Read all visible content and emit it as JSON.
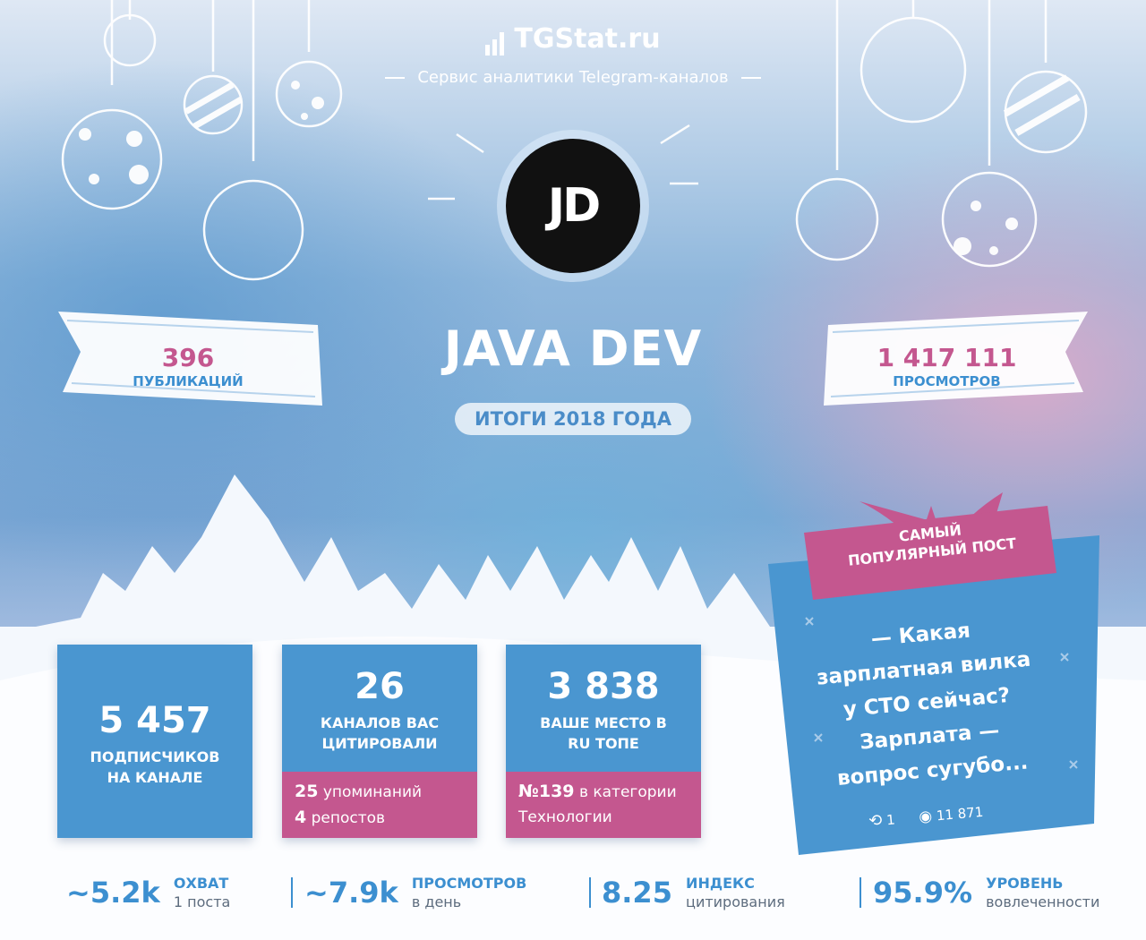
{
  "header": {
    "brand": "TGStat.ru",
    "tagline": "Сервис аналитики Telegram-каналов"
  },
  "channel": {
    "avatar_text": "JD",
    "name": "JAVA DEV",
    "period": "ИТОГИ 2018 ГОДА"
  },
  "ribbons": {
    "publications": {
      "value": "396",
      "label": "ПУБЛИКАЦИЙ"
    },
    "views": {
      "value": "1 417 111",
      "label": "ПРОСМОТРОВ"
    }
  },
  "cards": {
    "subscribers": {
      "value": "5 457",
      "label_line1": "ПОДПИСЧИКОВ",
      "label_line2": "НА КАНАЛЕ"
    },
    "citations": {
      "value": "26",
      "label_line1": "КАНАЛОВ ВАС",
      "label_line2": "ЦИТИРОВАЛИ",
      "mentions_count": "25",
      "mentions_label": "упоминаний",
      "reposts_count": "4",
      "reposts_label": "репостов"
    },
    "rank": {
      "value": "3 838",
      "label_line1": "ВАШЕ МЕСТО В",
      "label_line2": "RU ТОПЕ",
      "category_rank": "№139",
      "category_prefix": "в категории",
      "category_name": "Технологии"
    }
  },
  "popular_post": {
    "tag_line1": "САМЫЙ",
    "tag_line2": "ПОПУЛЯРНЫЙ ПОСТ",
    "lines": [
      "— Какая",
      "зарплатная вилка",
      "у CTO сейчас?",
      "Зарплата —",
      "вопрос сугубо..."
    ],
    "reposts": "1",
    "views": "11 871"
  },
  "metrics": [
    {
      "value": "~5.2k",
      "label_bold": "ОХВАТ",
      "label_sub": "1 поста"
    },
    {
      "value": "~7.9k",
      "label_bold": "ПРОСМОТРОВ",
      "label_sub": "в день"
    },
    {
      "value": "8.25",
      "label_bold": "ИНДЕКС",
      "label_sub": "цитирования"
    },
    {
      "value": "95.9%",
      "label_bold": "УРОВЕНЬ",
      "label_sub": "вовлеченности"
    }
  ],
  "colors": {
    "accent_blue": "#4a96d0",
    "accent_pink": "#c4578f",
    "text_blue": "#3c8fd0"
  }
}
